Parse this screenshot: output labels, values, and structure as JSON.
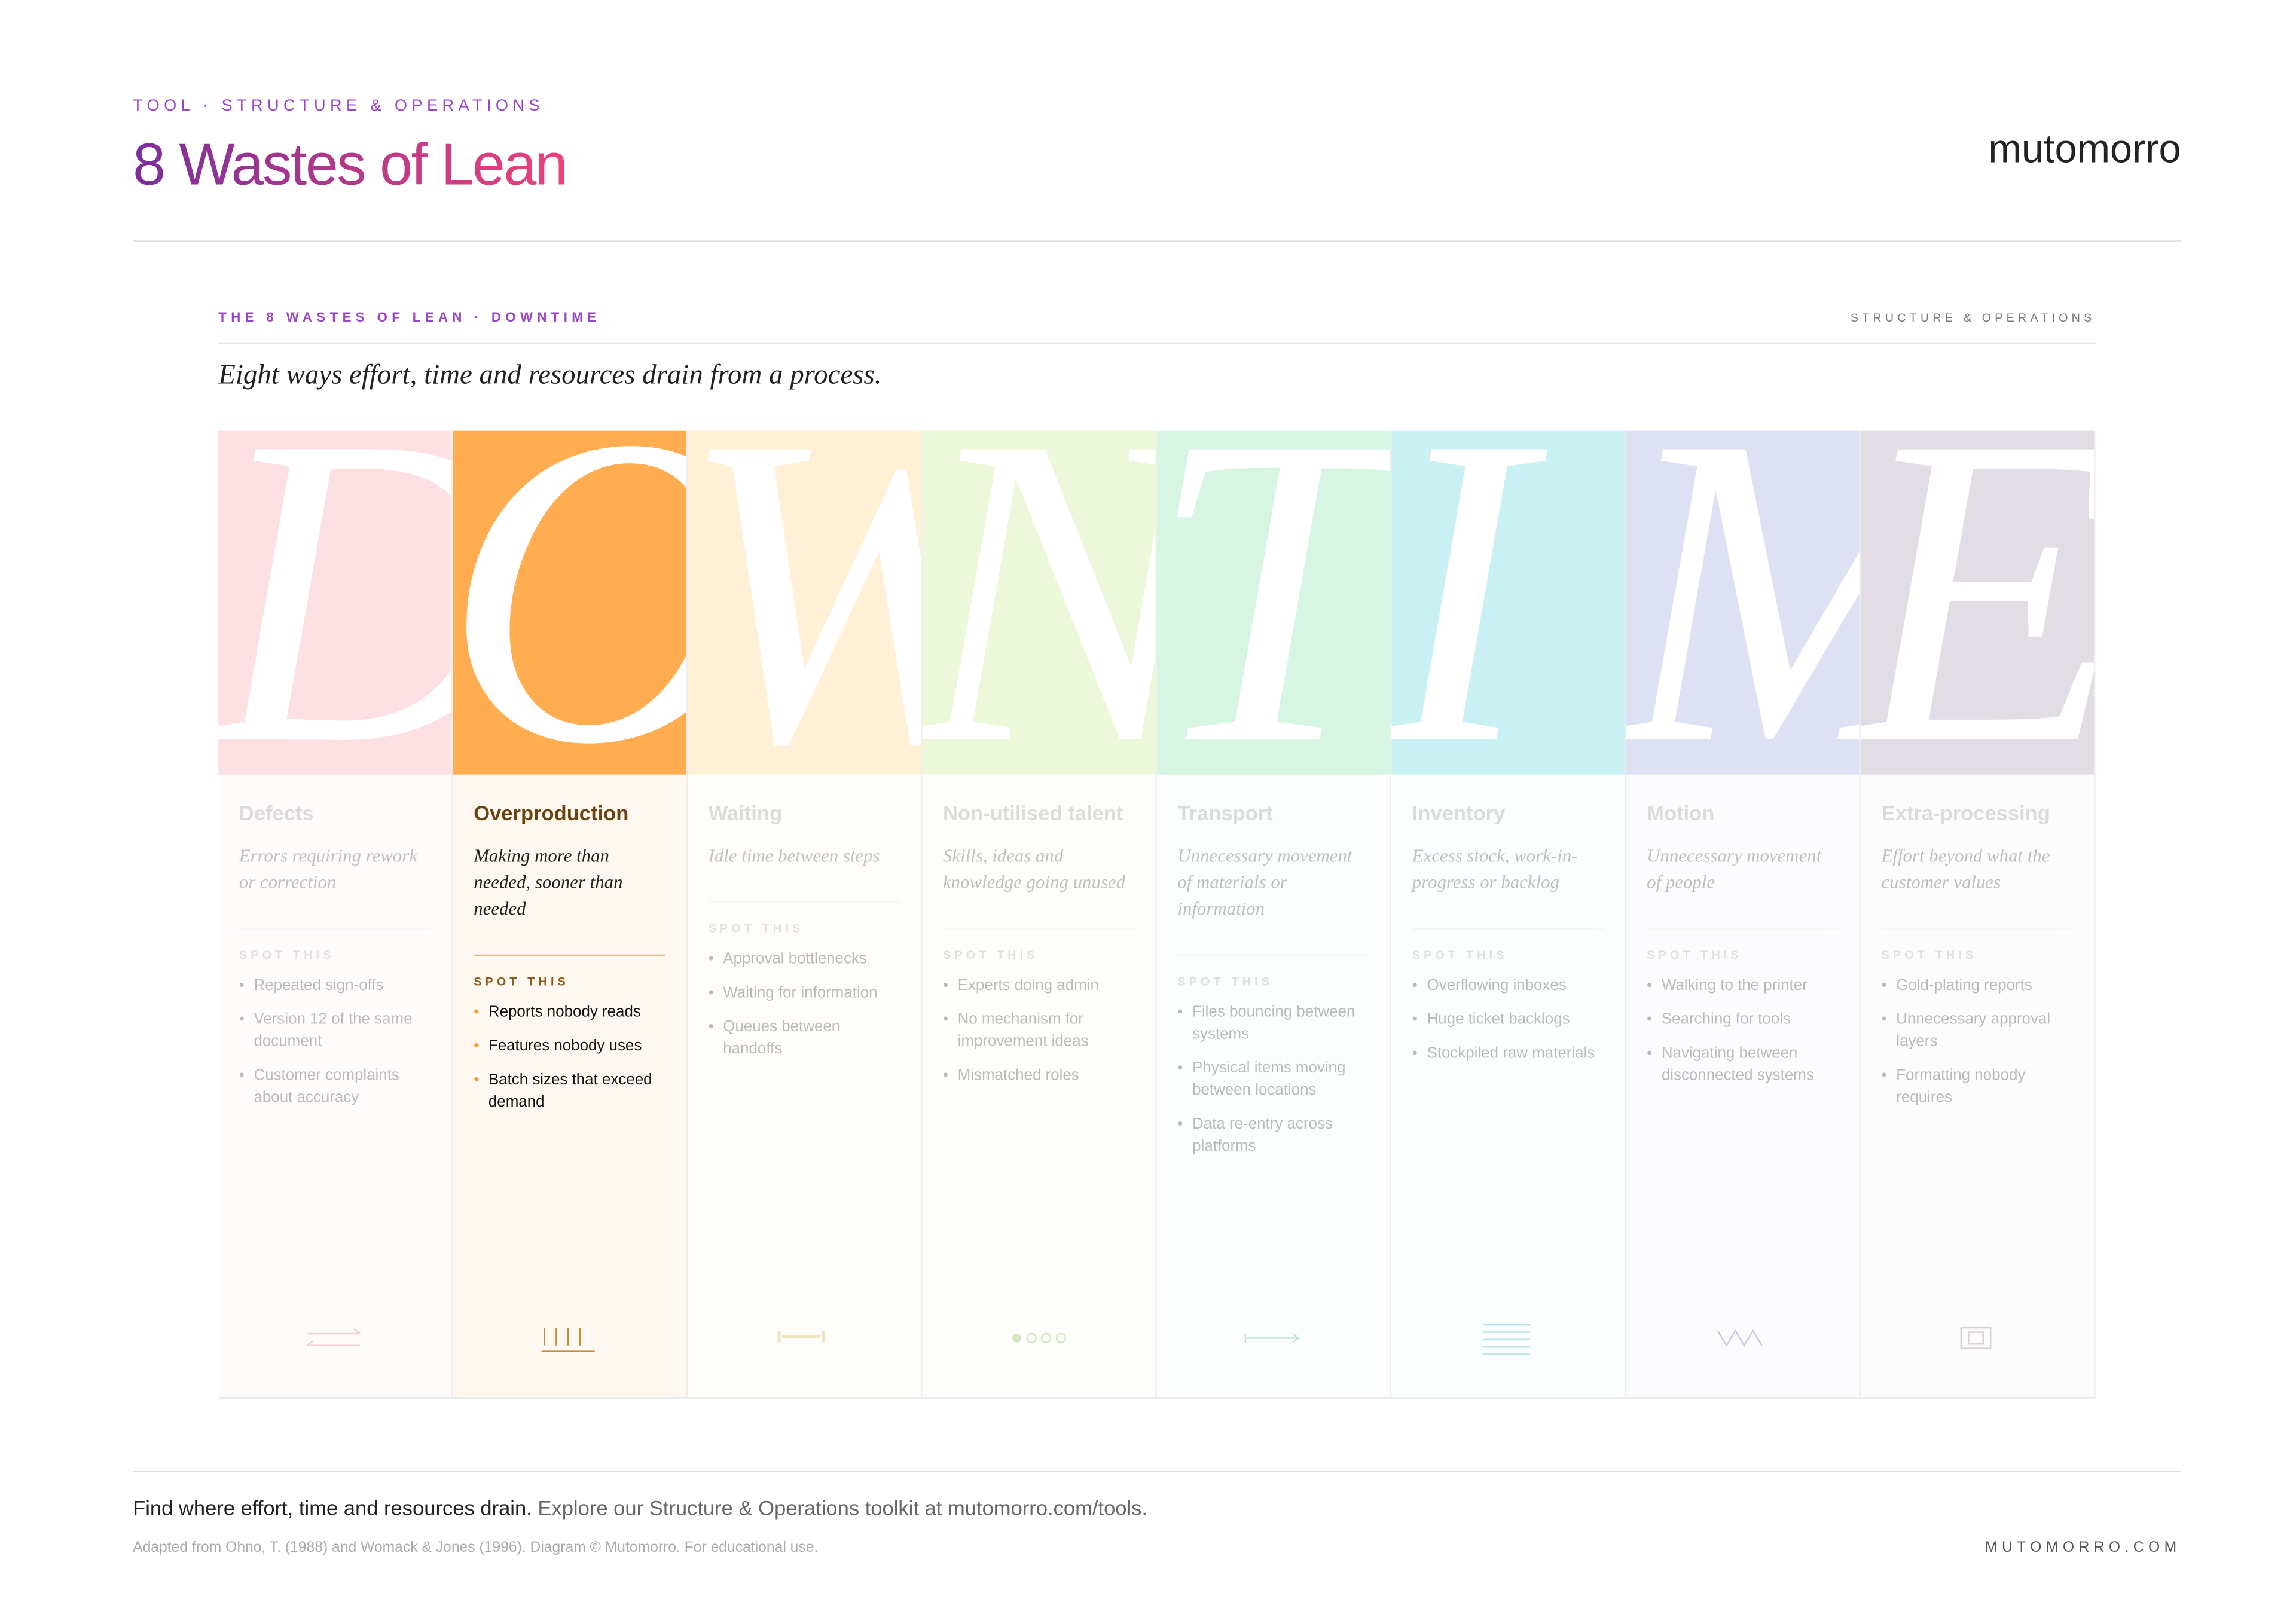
{
  "header": {
    "kicker": "TOOL · STRUCTURE & OPERATIONS",
    "title": "8 Wastes of Lean",
    "brand": "mutomorro"
  },
  "panel": {
    "kicker": "THE 8 WASTES OF LEAN · DOWNTIME",
    "category": "STRUCTURE & OPERATIONS",
    "subtitle": "Eight ways effort, time and resources drain from a process.",
    "columns": [
      {
        "letter": "D",
        "name": "Defects",
        "description": "Errors requiring rework or correction",
        "spot_label": "SPOT THIS",
        "items": [
          "Repeated sign-offs",
          "Version 12 of the same document",
          "Customer complaints about accuracy"
        ]
      },
      {
        "letter": "O",
        "name": "Overproduction",
        "description": "Making more than needed, sooner than needed",
        "spot_label": "SPOT THIS",
        "items": [
          "Reports nobody reads",
          "Features nobody uses",
          "Batch sizes that exceed demand"
        ]
      },
      {
        "letter": "W",
        "name": "Waiting",
        "description": "Idle time between steps",
        "spot_label": "SPOT THIS",
        "items": [
          "Approval bottlenecks",
          "Waiting for information",
          "Queues between handoffs"
        ]
      },
      {
        "letter": "N",
        "name": "Non-utilised talent",
        "description": "Skills, ideas and knowledge going unused",
        "spot_label": "SPOT THIS",
        "items": [
          "Experts doing admin",
          "No mechanism for improvement ideas",
          "Mismatched roles"
        ]
      },
      {
        "letter": "T",
        "name": "Transport",
        "description": "Unnecessary movement of materials or information",
        "spot_label": "SPOT THIS",
        "items": [
          "Files bouncing between systems",
          "Physical items moving between locations",
          "Data re-entry across platforms"
        ]
      },
      {
        "letter": "I",
        "name": "Inventory",
        "description": "Excess stock, work-in-progress or backlog",
        "spot_label": "SPOT THIS",
        "items": [
          "Overflowing inboxes",
          "Huge ticket backlogs",
          "Stockpiled raw materials"
        ]
      },
      {
        "letter": "M",
        "name": "Motion",
        "description": "Unnecessary movement of people",
        "spot_label": "SPOT THIS",
        "items": [
          "Walking to the printer",
          "Searching for tools",
          "Navigating between disconnected systems"
        ]
      },
      {
        "letter": "E",
        "name": "Extra-processing",
        "description": "Effort beyond what the customer values",
        "spot_label": "SPOT THIS",
        "items": [
          "Gold-plating reports",
          "Unnecessary approval layers",
          "Formatting nobody requires"
        ]
      }
    ]
  },
  "footer": {
    "lead": "Find where effort, time and resources drain.",
    "text": "Explore our Structure & Operations toolkit at mutomorro.com/tools.",
    "credit": "Adapted from Ohno, T. (1988) and Womack & Jones (1996). Diagram © Mutomorro. For educational use.",
    "url": "MUTOMORRO.COM"
  }
}
